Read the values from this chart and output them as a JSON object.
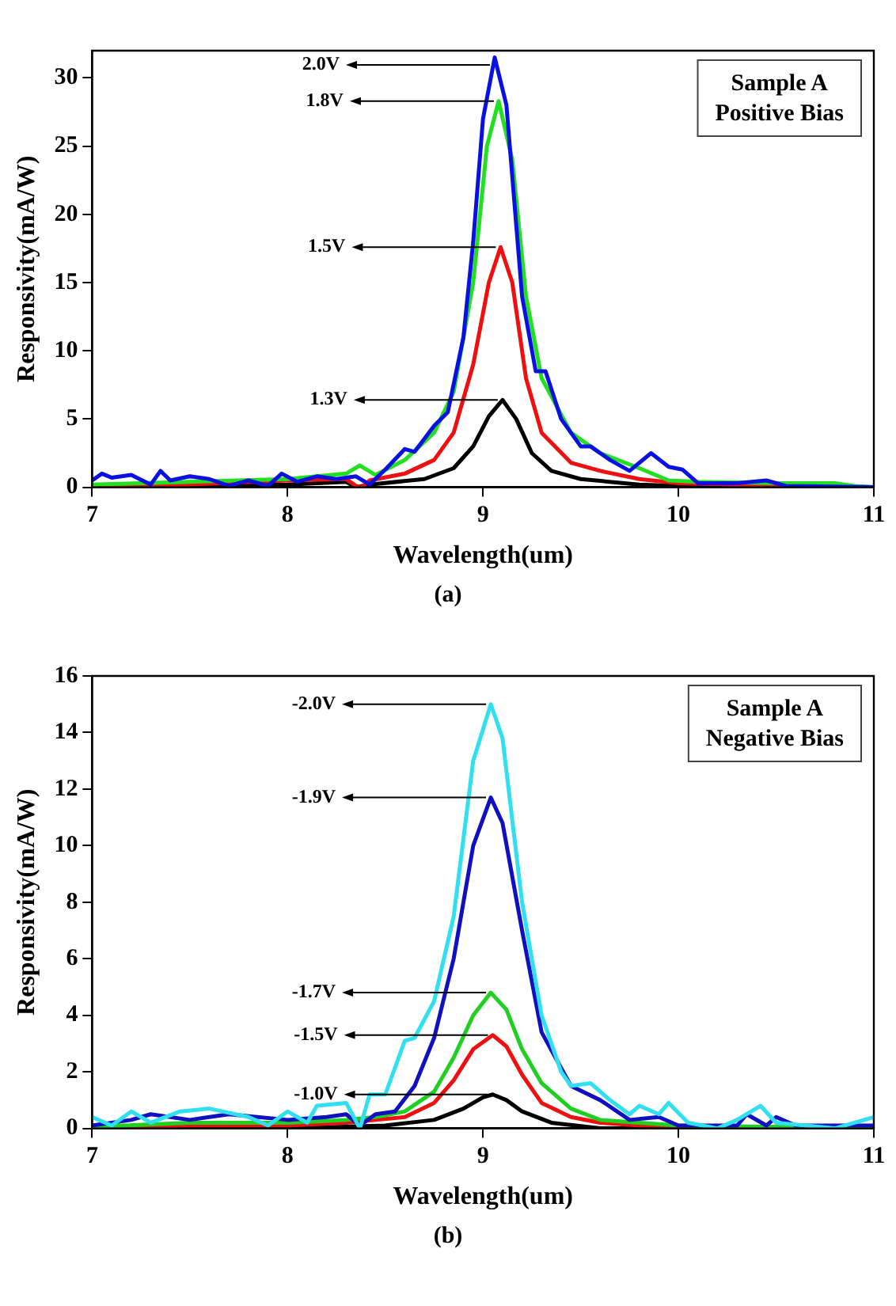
{
  "chart_data": [
    {
      "type": "line",
      "xlabel": "Wavelength(um)",
      "ylabel": "Responsivity(mA/W)",
      "xlim": [
        7,
        11
      ],
      "xticks": [
        7,
        8,
        9,
        10,
        11
      ],
      "ylim": [
        0,
        32
      ],
      "yticks": [
        0,
        5,
        10,
        15,
        20,
        25,
        30
      ],
      "grid": false,
      "marker": "none",
      "annotations": [
        "Sample A\nPositive Bias",
        "(a)",
        {
          "text": "2.0V",
          "x": 9.06,
          "y": 31.5
        },
        {
          "text": "1.8V",
          "x": 9.08,
          "y": 28.3
        },
        {
          "text": "1.5V",
          "x": 9.09,
          "y": 17.6
        },
        {
          "text": "1.3V",
          "x": 9.1,
          "y": 6.4
        }
      ],
      "series": [
        {
          "color": "#0a10e0",
          "x": [
            7,
            7.05,
            7.1,
            7.2,
            7.3,
            7.35,
            7.4,
            7.5,
            7.6,
            7.7,
            7.8,
            7.9,
            7.97,
            8.05,
            8.15,
            8.25,
            8.35,
            8.42,
            8.5,
            8.6,
            8.65,
            8.75,
            8.82,
            8.9,
            8.95,
            9.0,
            9.06,
            9.12,
            9.2,
            9.27,
            9.32,
            9.4,
            9.5,
            9.55,
            9.65,
            9.75,
            9.86,
            9.95,
            10.02,
            10.1,
            10.3,
            10.45,
            10.55,
            11
          ],
          "values": [
            0.5,
            1.0,
            0.7,
            0.9,
            0.2,
            1.2,
            0.5,
            0.8,
            0.6,
            0.1,
            0.5,
            0.1,
            1.0,
            0.4,
            0.8,
            0.6,
            0.8,
            0.2,
            1.3,
            2.8,
            2.6,
            4.5,
            5.5,
            11,
            18,
            27,
            31.5,
            28,
            14,
            8.5,
            8.5,
            5,
            3.0,
            3.0,
            2.0,
            1.2,
            2.5,
            1.5,
            1.3,
            0.3,
            0.3,
            0.5,
            0.1,
            0
          ]
        },
        {
          "color": "#20e020",
          "x": [
            7,
            7.5,
            8,
            8.3,
            8.37,
            8.45,
            8.6,
            8.75,
            8.85,
            8.95,
            9.02,
            9.08,
            9.15,
            9.22,
            9.3,
            9.45,
            9.6,
            9.8,
            9.95,
            10.1,
            10.5,
            10.8,
            10.9,
            11
          ],
          "values": [
            0.2,
            0.4,
            0.6,
            1.0,
            1.6,
            0.9,
            2,
            4,
            7,
            15,
            25,
            28.3,
            24,
            14,
            8,
            4,
            2.5,
            1.4,
            0.5,
            0.4,
            0.3,
            0.3,
            0.1,
            0
          ]
        },
        {
          "color": "#ee1010",
          "x": [
            7,
            7.5,
            8,
            8.3,
            8.35,
            8.38,
            8.42,
            8.6,
            8.75,
            8.85,
            8.95,
            9.03,
            9.09,
            9.15,
            9.22,
            9.3,
            9.45,
            9.6,
            9.8,
            10,
            10.5,
            11
          ],
          "values": [
            0.1,
            0.2,
            0.5,
            0.6,
            0.1,
            0,
            0.5,
            1.0,
            2,
            4,
            9,
            15,
            17.6,
            15,
            8,
            4,
            1.8,
            1.2,
            0.6,
            0.3,
            0.1,
            0
          ]
        },
        {
          "color": "#000000",
          "x": [
            7,
            8,
            8.3,
            8.35,
            8.42,
            8.7,
            8.85,
            8.95,
            9.03,
            9.1,
            9.17,
            9.25,
            9.35,
            9.5,
            9.8,
            10,
            11
          ],
          "values": [
            0,
            0.2,
            0.4,
            0,
            0.2,
            0.6,
            1.4,
            3,
            5.2,
            6.4,
            5,
            2.5,
            1.2,
            0.6,
            0.2,
            0.1,
            0
          ]
        }
      ]
    },
    {
      "type": "line",
      "xlabel": "Wavelength(um)",
      "ylabel": "Responsivity(mA/W)",
      "xlim": [
        7,
        11
      ],
      "xticks": [
        7,
        8,
        9,
        10,
        11
      ],
      "ylim": [
        0,
        16
      ],
      "yticks": [
        0,
        2,
        4,
        6,
        8,
        10,
        12,
        14,
        16
      ],
      "grid": false,
      "marker": "none",
      "annotations": [
        "Sample A\nNegative Bias",
        "(b)",
        {
          "text": "-2.0V",
          "x": 9.04,
          "y": 15.0
        },
        {
          "text": "-1.9V",
          "x": 9.04,
          "y": 11.7
        },
        {
          "text": "-1.7V",
          "x": 9.04,
          "y": 4.8
        },
        {
          "text": "-1.5V",
          "x": 9.05,
          "y": 3.3
        },
        {
          "text": "-1.0V",
          "x": 9.05,
          "y": 1.2
        }
      ],
      "series": [
        {
          "color": "#30e0f0",
          "x": [
            7,
            7.1,
            7.2,
            7.3,
            7.45,
            7.6,
            7.8,
            7.9,
            8.0,
            8.1,
            8.15,
            8.3,
            8.37,
            8.42,
            8.5,
            8.6,
            8.65,
            8.75,
            8.85,
            8.95,
            9.04,
            9.1,
            9.2,
            9.3,
            9.4,
            9.45,
            9.55,
            9.65,
            9.75,
            9.8,
            9.9,
            9.95,
            10.05,
            10.2,
            10.3,
            10.42,
            10.5,
            10.8,
            11
          ],
          "values": [
            0.4,
            0.1,
            0.6,
            0.2,
            0.6,
            0.7,
            0.4,
            0.1,
            0.6,
            0.2,
            0.8,
            0.9,
            0,
            1.2,
            1.2,
            3.1,
            3.2,
            4.5,
            7.5,
            13,
            15.0,
            13.8,
            8,
            4,
            2,
            1.5,
            1.6,
            1.0,
            0.5,
            0.8,
            0.5,
            0.9,
            0.2,
            0,
            0.3,
            0.8,
            0.2,
            0,
            0.4
          ]
        },
        {
          "color": "#1010c0",
          "x": [
            7,
            7.2,
            7.3,
            7.5,
            7.7,
            8,
            8.2,
            8.3,
            8.37,
            8.45,
            8.55,
            8.65,
            8.75,
            8.85,
            8.95,
            9.04,
            9.1,
            9.2,
            9.3,
            9.45,
            9.6,
            9.75,
            9.9,
            10,
            10.3,
            10.35,
            10.45,
            10.5,
            10.6,
            11
          ],
          "values": [
            0.1,
            0.3,
            0.5,
            0.3,
            0.5,
            0.3,
            0.4,
            0.5,
            0.1,
            0.5,
            0.6,
            1.5,
            3.2,
            6,
            10,
            11.7,
            10.8,
            7,
            3.4,
            1.5,
            1.0,
            0.3,
            0.4,
            0.1,
            0.1,
            0.5,
            0.1,
            0.4,
            0.1,
            0.1
          ]
        },
        {
          "color": "#20d020",
          "x": [
            7,
            7.5,
            8,
            8.3,
            8.45,
            8.6,
            8.75,
            8.85,
            8.95,
            9.04,
            9.12,
            9.2,
            9.3,
            9.45,
            9.6,
            9.8,
            10,
            11
          ],
          "values": [
            0.05,
            0.2,
            0.2,
            0.3,
            0.4,
            0.6,
            1.3,
            2.5,
            4,
            4.8,
            4.2,
            2.8,
            1.6,
            0.7,
            0.3,
            0.2,
            0.1,
            0
          ]
        },
        {
          "color": "#ee1010",
          "x": [
            7,
            7.5,
            8,
            8.3,
            8.45,
            8.6,
            8.75,
            8.85,
            8.95,
            9.05,
            9.12,
            9.2,
            9.3,
            9.45,
            9.6,
            9.8,
            11
          ],
          "values": [
            0,
            0.1,
            0.1,
            0.2,
            0.3,
            0.4,
            0.9,
            1.7,
            2.8,
            3.3,
            2.9,
            1.9,
            0.9,
            0.4,
            0.2,
            0.1,
            0
          ]
        },
        {
          "color": "#000000",
          "x": [
            7,
            8,
            8.5,
            8.75,
            8.9,
            9.0,
            9.05,
            9.12,
            9.2,
            9.35,
            9.6,
            11
          ],
          "values": [
            0,
            0,
            0.1,
            0.3,
            0.7,
            1.1,
            1.2,
            1.0,
            0.6,
            0.2,
            0,
            0
          ]
        }
      ]
    }
  ]
}
